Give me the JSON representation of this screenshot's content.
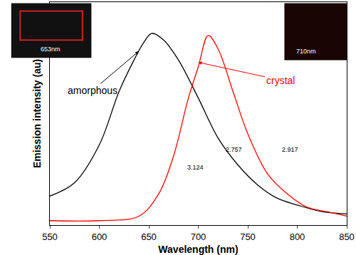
{
  "chart_data": {
    "type": "line",
    "x_label": "Wavelength (nm)",
    "y_label": "Emission intensity (au)",
    "xlim": [
      550,
      850
    ],
    "xticks": [
      550,
      600,
      650,
      700,
      750,
      800,
      850
    ],
    "ylim": [
      0,
      1
    ],
    "tick_labels": "x",
    "grid": false,
    "series": [
      {
        "name": "amorphous",
        "color": "#000000",
        "x": [
          550,
          575,
          600,
          620,
          635,
          645,
          653,
          665,
          680,
          700,
          720,
          740,
          760,
          780,
          800,
          825,
          850
        ],
        "values": [
          0.13,
          0.19,
          0.36,
          0.6,
          0.74,
          0.82,
          0.86,
          0.83,
          0.74,
          0.57,
          0.39,
          0.27,
          0.18,
          0.12,
          0.09,
          0.06,
          0.05
        ]
      },
      {
        "name": "crystal",
        "color": "#ff0000",
        "x": [
          550,
          600,
          640,
          660,
          675,
          690,
          700,
          710,
          720,
          735,
          750,
          770,
          790,
          810,
          830,
          850
        ],
        "values": [
          0.02,
          0.02,
          0.04,
          0.14,
          0.31,
          0.57,
          0.71,
          0.85,
          0.79,
          0.6,
          0.41,
          0.23,
          0.14,
          0.08,
          0.06,
          0.04
        ]
      }
    ],
    "annotations": [
      {
        "text": "amorphous",
        "x": 640,
        "y": 0.78,
        "color": "#000000"
      },
      {
        "text": "crystal",
        "x": 700,
        "y": 0.73,
        "color": "#ff0000"
      },
      {
        "text": "653nm",
        "x": 551,
        "y": 0.79,
        "color": "#ffffff"
      },
      {
        "text": "710nm",
        "x": 809,
        "y": 0.78,
        "color": "#ffffff"
      },
      {
        "text": "3.124",
        "x": 697,
        "y": 0.26,
        "color": "#000000"
      },
      {
        "text": "2.757",
        "x": 736,
        "y": 0.34,
        "color": "#000000"
      },
      {
        "text": "2.917",
        "x": 793,
        "y": 0.34,
        "color": "#000000"
      }
    ]
  }
}
